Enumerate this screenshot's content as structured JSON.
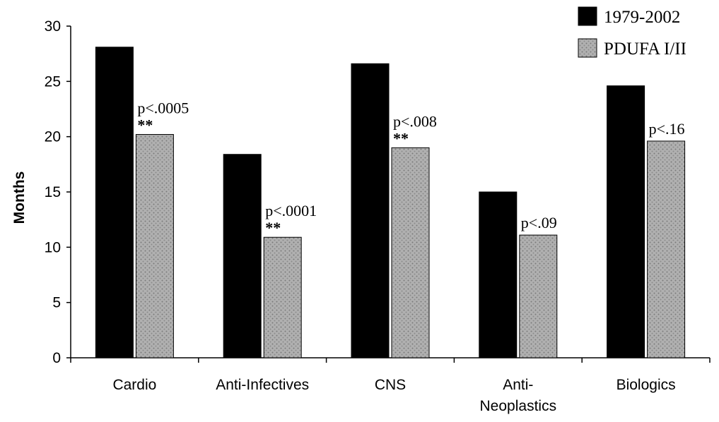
{
  "chart_data": {
    "type": "bar",
    "title": "",
    "xlabel": "",
    "ylabel": "Months",
    "ylim": [
      0,
      30
    ],
    "yticks": [
      0,
      5,
      10,
      15,
      20,
      25,
      30
    ],
    "grid": false,
    "legend_position": "top-right",
    "categories": [
      [
        "Cardio"
      ],
      [
        "Anti-Infectives"
      ],
      [
        "CNS"
      ],
      [
        "Anti-",
        "Neoplastics"
      ],
      [
        "Biologics"
      ]
    ],
    "series": [
      {
        "name": "1979-2002",
        "color": "#000000",
        "values": [
          28.1,
          18.4,
          26.6,
          15.0,
          24.6
        ]
      },
      {
        "name": "PDUFA I/II",
        "color": "#a8a8a8",
        "values": [
          20.2,
          10.9,
          19.0,
          11.1,
          19.6
        ]
      }
    ],
    "annotations": [
      {
        "category_index": 0,
        "text": "p<.0005",
        "stars": "**"
      },
      {
        "category_index": 1,
        "text": "p<.0001",
        "stars": "**"
      },
      {
        "category_index": 2,
        "text": "p<.008",
        "stars": "**"
      },
      {
        "category_index": 3,
        "text": "p<.09",
        "stars": ""
      },
      {
        "category_index": 4,
        "text": "p<.16",
        "stars": ""
      }
    ]
  }
}
